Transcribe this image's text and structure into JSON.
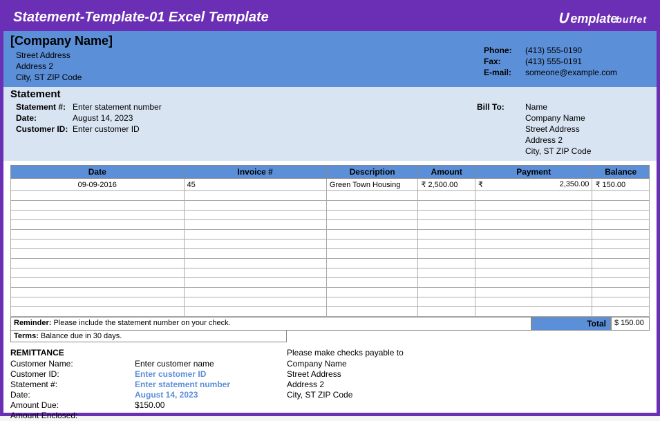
{
  "banner": {
    "title": "Statement-Template-01 Excel Template",
    "logo_text1": "emplate",
    "logo_text2": "buffet"
  },
  "colors": {
    "purple": "#6a2fb5",
    "blue_header": "#5b8fd8",
    "blue_light": "#d9e4f2"
  },
  "company": {
    "name": "[Company Name]",
    "addr1": "Street Address",
    "addr2": "Address 2",
    "addr3": "City, ST  ZIP Code",
    "phone_label": "Phone:",
    "phone": "(413) 555-0190",
    "fax_label": "Fax:",
    "fax": "(413) 555-0191",
    "email_label": "E-mail:",
    "email": "someone@example.com"
  },
  "statement": {
    "heading": "Statement",
    "num_label": "Statement #:",
    "num": "Enter statement number",
    "date_label": "Date:",
    "date": "August 14, 2023",
    "cust_label": "Customer ID:",
    "cust": "Enter customer ID",
    "billto_label": "Bill To:",
    "billto_lines": [
      "Name",
      "Company Name",
      "Street Address",
      "Address 2",
      "City, ST  ZIP Code"
    ]
  },
  "table": {
    "columns": [
      "Date",
      "Invoice #",
      "Description",
      "Amount",
      "Payment",
      "Balance"
    ],
    "col_classes": [
      "col-date",
      "col-inv",
      "col-desc",
      "col-amt",
      "col-pay",
      "col-bal"
    ],
    "row": {
      "date": "09-09-2016",
      "invoice": "45",
      "desc": "Green Town Housing",
      "amount": "₹ 2,500.00",
      "payment_cur": "₹",
      "payment_val": "2,350.00",
      "balance": "₹ 150.00"
    },
    "empty_rows": 13,
    "reminder_label": "Reminder: ",
    "reminder": "Please include the statement number on your check.",
    "terms_label": "Terms: ",
    "terms": "Balance due in 30 days.",
    "total_label": "Total",
    "total_value": "$ 150.00"
  },
  "remit": {
    "title": "REMITTANCE",
    "rows": [
      {
        "lab": "Customer Name:",
        "val": "Enter customer name",
        "link": false
      },
      {
        "lab": "Customer ID:",
        "val": "Enter customer ID",
        "link": true
      },
      {
        "lab": "Statement #:",
        "val": "Enter statement number",
        "link": true
      },
      {
        "lab": "Date:",
        "val": "August 14, 2023",
        "link": true
      },
      {
        "lab": "Amount Due:",
        "val": "$150.00",
        "link": false
      },
      {
        "lab": "Amount Enclosed:",
        "val": "",
        "link": false
      }
    ],
    "payable_title": "Please make checks payable to",
    "payable_lines": [
      "Company Name",
      "Street Address",
      "Address 2",
      "City, ST  ZIP Code"
    ]
  }
}
